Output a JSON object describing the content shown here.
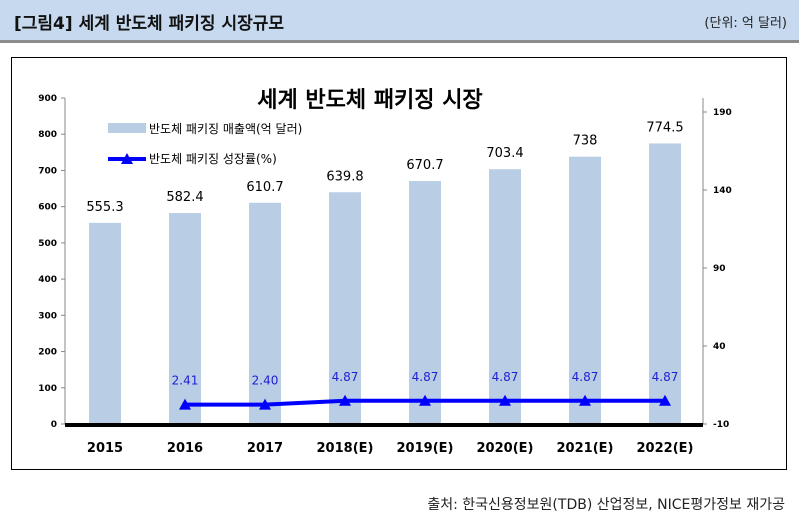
{
  "header": {
    "title": "[그림4] 세계 반도체 패키징 시장규모",
    "unit": "(단위: 억 달러)"
  },
  "source": "출처: 한국신용정보원(TDB) 산업정보, NICE평가정보 재가공",
  "chart_data": {
    "type": "bar+line",
    "title": "세계 반도체 패키징 시장",
    "categories": [
      "2015",
      "2016",
      "2017",
      "2018(E)",
      "2019(E)",
      "2020(E)",
      "2021(E)",
      "2022(E)"
    ],
    "series": [
      {
        "name": "반도체 패키징 매출액(억 달러)",
        "type": "bar",
        "axis": "left",
        "color": "#b9cde5",
        "values": [
          555.3,
          582.4,
          610.7,
          639.8,
          670.7,
          703.4,
          738,
          774.5
        ],
        "labels": [
          "555.3",
          "582.4",
          "610.7",
          "639.8",
          "670.7",
          "703.4",
          "738",
          "774.5"
        ]
      },
      {
        "name": "반도체 패키징 성장률(%)",
        "type": "line",
        "axis": "right",
        "color": "#0000ff",
        "values": [
          null,
          2.41,
          2.4,
          4.87,
          4.87,
          4.87,
          4.87,
          4.87
        ],
        "labels": [
          "",
          "2.41",
          "2.40",
          "4.87",
          "4.87",
          "4.87",
          "4.87",
          "4.87"
        ]
      }
    ],
    "y_left": {
      "range": [
        0,
        900
      ],
      "ticks": [
        "0",
        "100",
        "200",
        "300",
        "400",
        "500",
        "600",
        "700",
        "800",
        "900"
      ]
    },
    "y_right": {
      "range": [
        -10,
        200
      ],
      "ticks": [
        "-10",
        "40",
        "90",
        "140",
        "190"
      ]
    },
    "grid": false,
    "legend": "top-left"
  }
}
